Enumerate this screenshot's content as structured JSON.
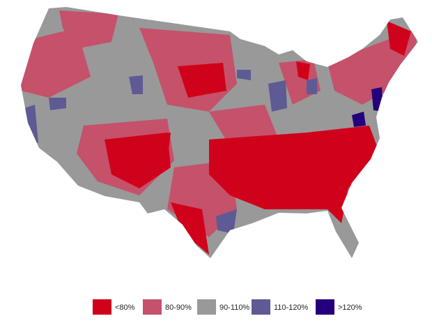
{
  "legend": {
    "items": [
      {
        "label": "<80%",
        "color": "#d0021b"
      },
      {
        "label": "80-90%",
        "color": "#c5516a"
      },
      {
        "label": "90-110%",
        "color": "#999999"
      },
      {
        "label": "110-120%",
        "color": "#5e5a94"
      },
      {
        "label": ">120%",
        "color": "#24007a"
      }
    ]
  }
}
